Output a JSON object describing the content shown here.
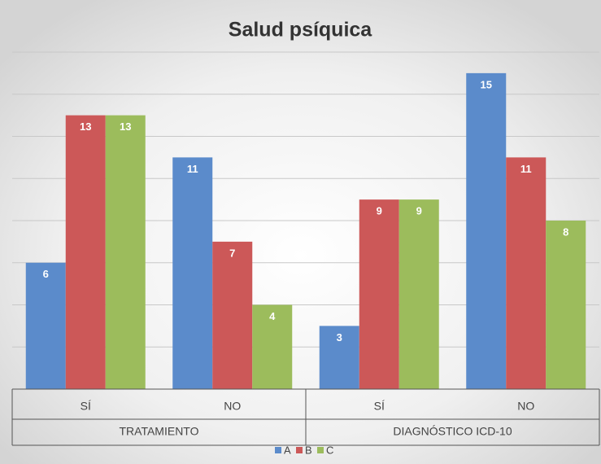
{
  "chart_data": {
    "type": "bar",
    "title": "Salud psíquica",
    "groups": [
      {
        "label": "TRATAMIENTO",
        "categories": [
          "SÍ",
          "NO"
        ]
      },
      {
        "label": "DIAGNÓSTICO ICD-10",
        "categories": [
          "SÍ",
          "NO"
        ]
      }
    ],
    "series": [
      {
        "name": "A",
        "color": "#5b8bcb",
        "values": [
          6,
          11,
          3,
          15
        ]
      },
      {
        "name": "B",
        "color": "#cc5858",
        "values": [
          13,
          7,
          9,
          11
        ]
      },
      {
        "name": "C",
        "color": "#9cbc5c",
        "values": [
          13,
          4,
          9,
          8
        ]
      }
    ],
    "ylim": [
      0,
      16
    ],
    "yticks": [
      0,
      2,
      4,
      6,
      8,
      10,
      12,
      14,
      16
    ],
    "grid": true,
    "legend": "bottom"
  }
}
